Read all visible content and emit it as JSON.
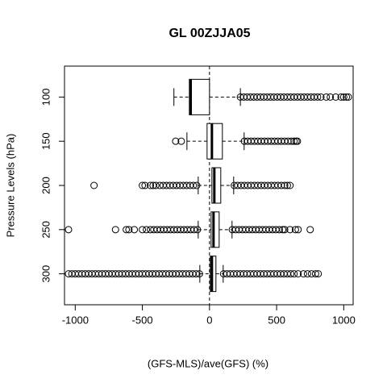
{
  "chart_data": {
    "type": "box",
    "orientation": "horizontal",
    "title": "GL 00ZJJA05",
    "xlabel": "(GFS-MLS)/ave(GFS) (%)",
    "ylabel": "Pressure Levels (hPa)",
    "categories": [
      "100",
      "150",
      "200",
      "250",
      "300"
    ],
    "xlim": [
      -1080,
      1070
    ],
    "xticks": [
      -1000,
      -500,
      0,
      500,
      1000
    ],
    "vline": 0,
    "boxes": [
      {
        "whislo": -265,
        "q1": -150,
        "med": -140,
        "q3": 0,
        "whishi": 230,
        "outliers": [
          230,
          255,
          280,
          305,
          330,
          355,
          380,
          405,
          430,
          455,
          480,
          505,
          530,
          555,
          580,
          605,
          630,
          655,
          680,
          705,
          730,
          755,
          780,
          805,
          830,
          870,
          900,
          940,
          980,
          1000,
          1020,
          1035
        ]
      },
      {
        "whislo": -168,
        "q1": -18,
        "med": 18,
        "q3": 96,
        "whishi": 258,
        "outliers": [
          -252,
          -210,
          260,
          285,
          310,
          335,
          360,
          385,
          410,
          435,
          460,
          485,
          510,
          535,
          560,
          585,
          610,
          630,
          645,
          655
        ]
      },
      {
        "whislo": -84,
        "q1": 18,
        "med": 36,
        "q3": 84,
        "whishi": 180,
        "outliers": [
          -860,
          -500,
          -480,
          -440,
          -420,
          -400,
          -370,
          -345,
          -320,
          -295,
          -270,
          -245,
          -220,
          -195,
          -170,
          -145,
          -120,
          -95,
          185,
          210,
          235,
          260,
          285,
          310,
          335,
          360,
          385,
          410,
          435,
          460,
          485,
          510,
          535,
          560,
          580,
          600
        ]
      },
      {
        "whislo": -84,
        "q1": 12,
        "med": 30,
        "q3": 72,
        "whishi": 168,
        "outliers": [
          -1050,
          -700,
          -620,
          -600,
          -560,
          -500,
          -470,
          -440,
          -415,
          -390,
          -365,
          -340,
          -315,
          -290,
          -265,
          -240,
          -215,
          -190,
          -165,
          -140,
          -115,
          -90,
          170,
          195,
          220,
          245,
          270,
          295,
          320,
          345,
          370,
          395,
          420,
          445,
          470,
          495,
          520,
          545,
          560,
          600,
          640,
          660,
          750
        ]
      },
      {
        "whislo": -72,
        "q1": 6,
        "med": 18,
        "q3": 48,
        "whishi": 102,
        "outliers": [
          -1050,
          -1025,
          -1000,
          -975,
          -950,
          -925,
          -900,
          -875,
          -850,
          -825,
          -800,
          -775,
          -750,
          -725,
          -700,
          -675,
          -650,
          -625,
          -600,
          -575,
          -550,
          -525,
          -500,
          -475,
          -450,
          -425,
          -400,
          -375,
          -350,
          -325,
          -300,
          -275,
          -250,
          -225,
          -200,
          -175,
          -150,
          -125,
          -100,
          -75,
          105,
          130,
          155,
          180,
          205,
          230,
          255,
          280,
          305,
          330,
          355,
          380,
          405,
          430,
          455,
          480,
          505,
          530,
          555,
          580,
          605,
          630,
          660,
          700,
          730,
          760,
          790,
          810
        ]
      }
    ]
  }
}
